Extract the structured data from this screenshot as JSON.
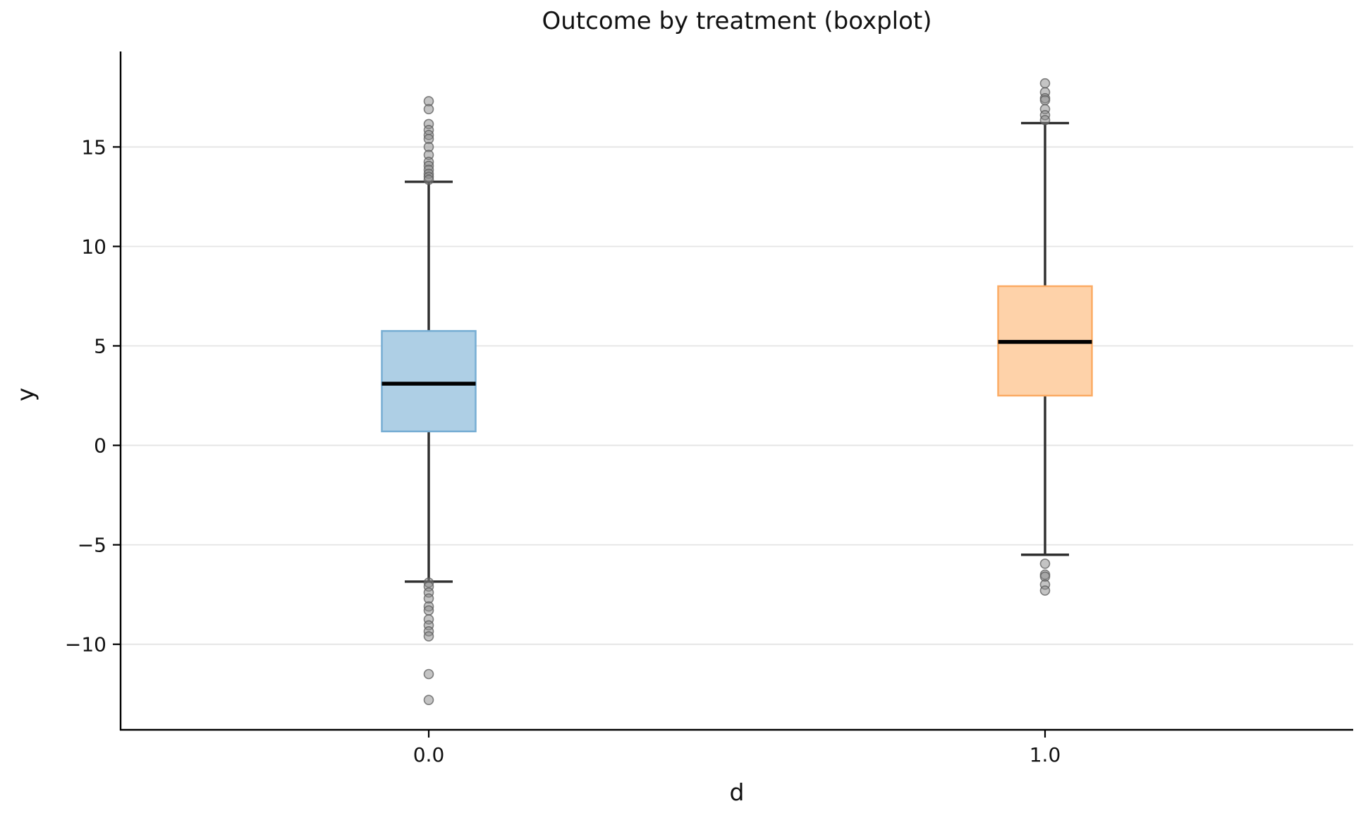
{
  "title": "Outcome by treatment (boxplot)",
  "chart_data": {
    "type": "boxplot",
    "title": "Outcome by treatment (boxplot)",
    "xlabel": "d",
    "ylabel": "y",
    "categories": [
      "0.0",
      "1.0"
    ],
    "x_positions": [
      0,
      1
    ],
    "xlim": [
      -0.5,
      1.5
    ],
    "ylim": [
      -14.3,
      19.8
    ],
    "yticks": [
      15,
      10,
      5,
      0,
      -5,
      -10
    ],
    "grid": "horizontal-only",
    "legend": "none",
    "spines": [
      "left",
      "bottom"
    ],
    "series": [
      {
        "name": "d=0.0",
        "category": "0.0",
        "x": 0,
        "whisker_low": -6.85,
        "q1": 0.7,
        "median": 3.1,
        "q3": 5.75,
        "whisker_high": 13.25,
        "outliers_high": [
          17.3,
          16.9,
          16.15,
          15.85,
          15.6,
          15.4,
          15.0,
          14.6,
          14.25,
          14.05,
          13.85,
          13.65,
          13.5,
          13.35
        ],
        "outliers_low": [
          -6.9,
          -7.1,
          -7.4,
          -7.7,
          -8.1,
          -8.3,
          -8.75,
          -9.05,
          -9.35,
          -9.6,
          -11.5,
          -12.8
        ],
        "fill": "#aecfe5",
        "edge": "#76add3"
      },
      {
        "name": "d=1.0",
        "category": "1.0",
        "x": 1,
        "whisker_low": -5.5,
        "q1": 2.5,
        "median": 5.2,
        "q3": 8.0,
        "whisker_high": 16.2,
        "outliers_high": [
          18.2,
          17.75,
          17.45,
          17.35,
          16.9,
          16.6,
          16.35
        ],
        "outliers_low": [
          -5.95,
          -6.5,
          -6.6,
          -7.0,
          -7.3
        ],
        "fill": "#fed2a9",
        "edge": "#fbab64"
      }
    ],
    "colors": {
      "background": "#ffffff",
      "grid": "#e4e4e4",
      "spine": "#000000",
      "whisker": "#2e2e2e",
      "median": "#000000",
      "outlier_fill": "#8a8a8a",
      "outlier_edge": "#5a5a5a",
      "tick_text": "#111111"
    }
  }
}
